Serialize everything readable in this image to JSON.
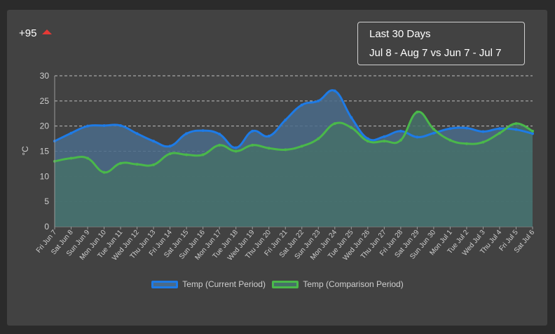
{
  "header": {
    "delta_value": "+95",
    "delta_direction": "up",
    "delta_color": "#e53935",
    "period_title": "Last 30 Days",
    "period_range": "Jul 8 - Aug 7 vs Jun 7 - Jul 7"
  },
  "chart_data": {
    "type": "area",
    "ylabel": "°C",
    "xlabel": "",
    "ylim": [
      0,
      30
    ],
    "yticks": [
      "0",
      "5",
      "10",
      "15",
      "20",
      "25",
      "30"
    ],
    "grid": true,
    "legend_position": "bottom",
    "categories": [
      "Fri Jun 7",
      "Sat Jun 8",
      "Sun Jun 9",
      "Mon Jun 10",
      "Tue Jun 11",
      "Wed Jun 12",
      "Thu Jun 13",
      "Fri Jun 14",
      "Sat Jun 15",
      "Sun Jun 16",
      "Mon Jun 17",
      "Tue Jun 18",
      "Wed Jun 19",
      "Thu Jun 20",
      "Fri Jun 21",
      "Sat Jun 22",
      "Sun Jun 23",
      "Mon Jun 24",
      "Tue Jun 25",
      "Wed Jun 26",
      "Thu Jun 27",
      "Fri Jun 28",
      "Sat Jun 29",
      "Sun Jun 30",
      "Mon Jul 1",
      "Tue Jul 2",
      "Wed Jul 3",
      "Thu Jul 4",
      "Fri Jul 5",
      "Sat Jul 6"
    ],
    "series": [
      {
        "name": "Temp (Current Period)",
        "color": "#1e7be6",
        "fill": "#4a6b8a",
        "values": [
          17.0,
          18.6,
          20.0,
          20.1,
          20.1,
          18.5,
          17.0,
          16.0,
          18.5,
          19.1,
          18.4,
          15.7,
          19.0,
          18.0,
          21.2,
          24.2,
          25.0,
          27.0,
          21.7,
          17.5,
          17.9,
          19.0,
          17.8,
          18.6,
          19.5,
          19.6,
          18.9,
          19.5,
          19.3,
          18.5
        ]
      },
      {
        "name": "Temp (Comparison Period)",
        "color": "#4ab84a",
        "fill": "#457068",
        "values": [
          13.0,
          13.6,
          13.6,
          10.8,
          12.6,
          12.4,
          12.3,
          14.5,
          14.3,
          14.3,
          16.2,
          15.0,
          16.2,
          15.6,
          15.3,
          16.0,
          17.5,
          20.5,
          19.7,
          17.0,
          17.0,
          17.2,
          22.8,
          19.4,
          17.2,
          16.5,
          16.8,
          18.6,
          20.5,
          19.0
        ]
      }
    ]
  }
}
